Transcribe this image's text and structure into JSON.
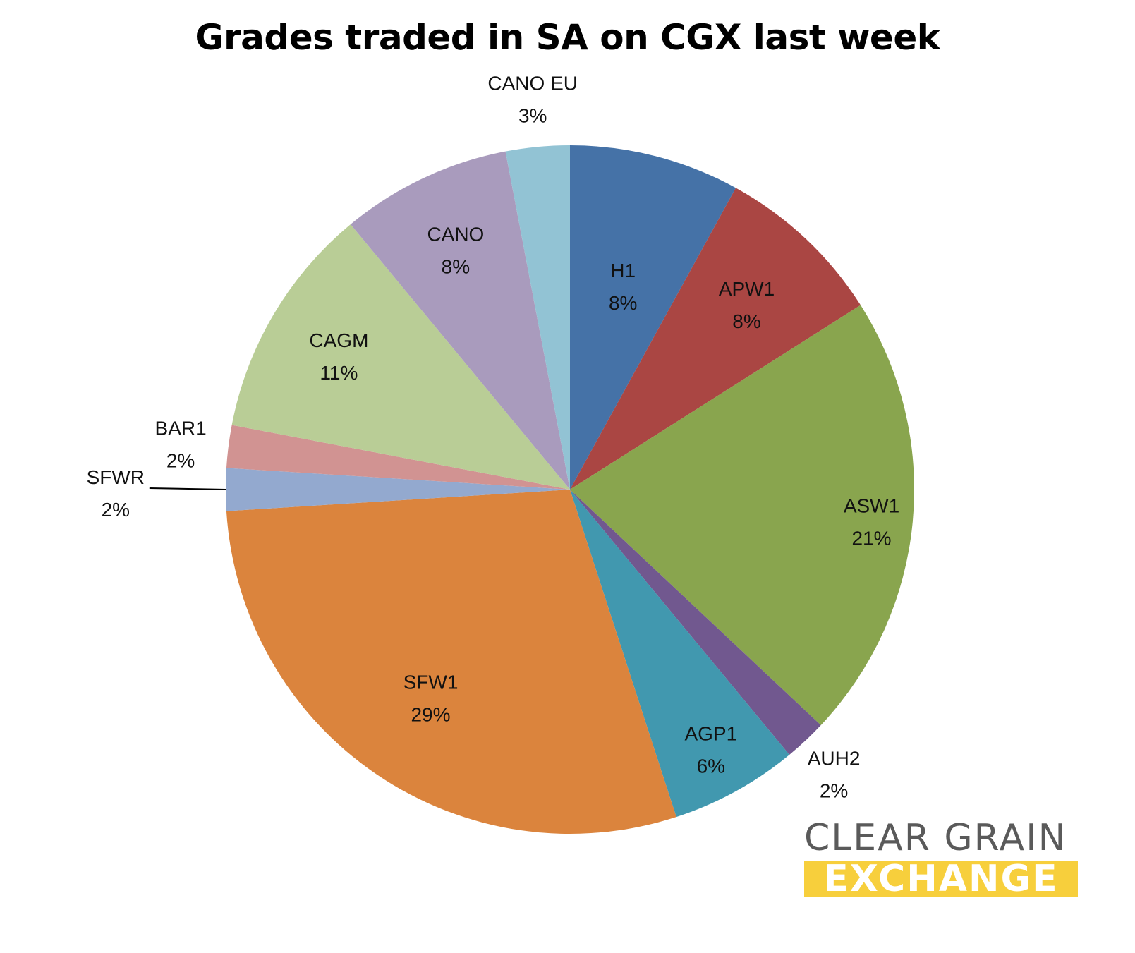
{
  "chart_data": {
    "type": "pie",
    "title": "Grades traded in SA on CGX last week",
    "slices": [
      {
        "label": "H1",
        "value": 8,
        "value_label": "8%",
        "color": "#4572a7"
      },
      {
        "label": "APW1",
        "value": 8,
        "value_label": "8%",
        "color": "#aa4643"
      },
      {
        "label": "ASW1",
        "value": 21,
        "value_label": "21%",
        "color": "#89a54e"
      },
      {
        "label": "AUH2",
        "value": 2,
        "value_label": "2%",
        "color": "#71588f"
      },
      {
        "label": "AGP1",
        "value": 6,
        "value_label": "6%",
        "color": "#4198af"
      },
      {
        "label": "SFW1",
        "value": 29,
        "value_label": "29%",
        "color": "#db843d"
      },
      {
        "label": "SFWR",
        "value": 2,
        "value_label": "2%",
        "color": "#93a9cf"
      },
      {
        "label": "BAR1",
        "value": 2,
        "value_label": "2%",
        "color": "#d19392"
      },
      {
        "label": "CAGM",
        "value": 11,
        "value_label": "11%",
        "color": "#b9cd96"
      },
      {
        "label": "CANO",
        "value": 8,
        "value_label": "8%",
        "color": "#a99bbd"
      },
      {
        "label": "CANO EU",
        "value": 3,
        "value_label": "3%",
        "color": "#92c3d4"
      }
    ]
  },
  "logo": {
    "line1": "CLEAR GRAIN",
    "line2": "EXCHANGE",
    "accent_color": "#f7cf3c"
  }
}
